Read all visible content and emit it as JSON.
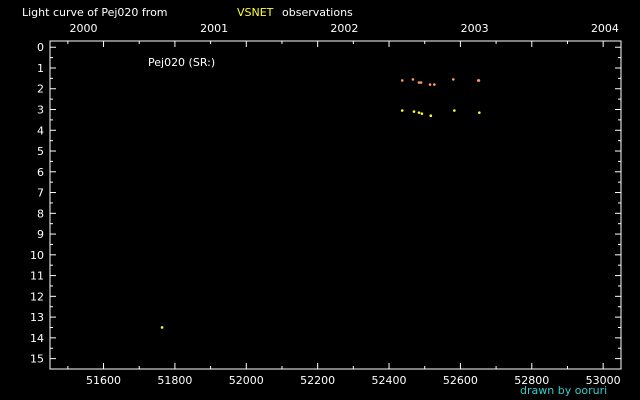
{
  "chart_data": {
    "type": "scatter",
    "title_prefix": "Light curve of Pej020 from",
    "title_source": "VSNET",
    "title_suffix": "observations",
    "star_label": "Pej020 (SR:)",
    "credit": "drawn by ooruri",
    "xlim": [
      51450,
      53050
    ],
    "ylim": [
      15.5,
      -0.3
    ],
    "x_ticks": [
      51600,
      51800,
      52000,
      52200,
      52400,
      52600,
      52800,
      53000
    ],
    "y_ticks": [
      0,
      1,
      2,
      3,
      4,
      5,
      6,
      7,
      8,
      9,
      10,
      11,
      12,
      13,
      14,
      15
    ],
    "year_ticks": [
      {
        "label": "2000",
        "x": 51544
      },
      {
        "label": "2001",
        "x": 51910
      },
      {
        "label": "2002",
        "x": 52275
      },
      {
        "label": "2003",
        "x": 52640
      },
      {
        "label": "2004",
        "x": 53005
      }
    ],
    "colors": {
      "axes": "#ffffff",
      "source": "#ffff33",
      "credit": "#33cccc"
    },
    "series": [
      {
        "color": "#ff9966",
        "points": [
          [
            52437,
            1.6
          ],
          [
            52467,
            1.55
          ],
          [
            52484,
            1.7
          ],
          [
            52490,
            1.7
          ],
          [
            52515,
            1.8
          ],
          [
            52527,
            1.8
          ],
          [
            52580,
            1.55
          ],
          [
            52650,
            1.6
          ],
          [
            52652,
            1.6
          ]
        ]
      },
      {
        "color": "#ffff33",
        "points": [
          [
            51764,
            13.5
          ],
          [
            52437,
            3.05
          ],
          [
            52470,
            3.1
          ],
          [
            52484,
            3.15
          ],
          [
            52492,
            3.2
          ],
          [
            52517,
            3.3
          ],
          [
            52583,
            3.05
          ],
          [
            52653,
            3.15
          ]
        ]
      }
    ]
  }
}
